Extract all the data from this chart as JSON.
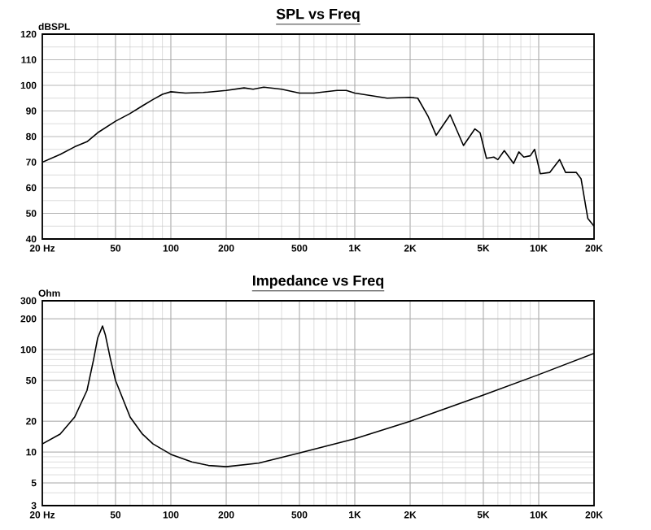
{
  "chart_data": [
    {
      "type": "line",
      "title": "SPL vs Freq",
      "ylabel": "dBSPL",
      "log": "x",
      "grid": true,
      "xlim": [
        20,
        20000
      ],
      "ylim": [
        40,
        120
      ],
      "xticks": [
        {
          "value": 20,
          "label": "20 Hz"
        },
        50,
        100,
        200,
        500,
        {
          "value": 1000,
          "label": "1K"
        },
        {
          "value": 2000,
          "label": "2K"
        },
        {
          "value": 5000,
          "label": "5K"
        },
        {
          "value": 10000,
          "label": "10K"
        },
        {
          "value": 20000,
          "label": "20K"
        }
      ],
      "yticks": [
        40,
        50,
        60,
        70,
        80,
        90,
        100,
        110,
        120
      ],
      "x": [
        20,
        25,
        30,
        35,
        40,
        50,
        60,
        70,
        80,
        90,
        100,
        120,
        150,
        200,
        250,
        280,
        320,
        400,
        500,
        600,
        800,
        900,
        1000,
        1500,
        2000,
        2200,
        2500,
        2770,
        3300,
        3900,
        4500,
        4800,
        5200,
        5700,
        6000,
        6500,
        7300,
        7800,
        8300,
        9000,
        9500,
        10200,
        11500,
        13000,
        14000,
        16000,
        17000,
        18500,
        20000
      ],
      "series": [
        {
          "color": "#000000",
          "values": [
            70,
            73,
            76,
            78,
            81.5,
            86,
            89,
            92,
            94.5,
            96.5,
            97.5,
            97,
            97.2,
            98,
            99,
            98.5,
            99.3,
            98.5,
            97,
            97,
            98,
            98,
            97,
            95,
            95.3,
            95,
            88,
            80.5,
            88.5,
            76.5,
            83,
            81.5,
            71.5,
            72,
            71,
            74.5,
            69.5,
            74,
            72,
            72.5,
            75,
            65.5,
            66,
            71,
            66,
            66,
            63.5,
            48,
            45
          ]
        }
      ]
    },
    {
      "type": "line",
      "title": "Impedance vs Freq",
      "ylabel": "Ohm",
      "log": "xy",
      "grid": true,
      "xlim": [
        20,
        20000
      ],
      "ylim": [
        3,
        300
      ],
      "xticks": [
        {
          "value": 20,
          "label": "20 Hz"
        },
        50,
        100,
        200,
        500,
        {
          "value": 1000,
          "label": "1K"
        },
        {
          "value": 2000,
          "label": "2K"
        },
        {
          "value": 5000,
          "label": "5K"
        },
        {
          "value": 10000,
          "label": "10K"
        },
        {
          "value": 20000,
          "label": "20K"
        }
      ],
      "yticks": [
        3,
        5,
        10,
        20,
        50,
        100,
        200,
        300
      ],
      "x": [
        20,
        25,
        30,
        35,
        38,
        40,
        42.5,
        44,
        47,
        50,
        60,
        70,
        80,
        100,
        130,
        160,
        200,
        300,
        500,
        1000,
        2000,
        5000,
        10000,
        20000
      ],
      "series": [
        {
          "color": "#000000",
          "values": [
            12,
            15,
            22,
            40,
            80,
            130,
            170,
            140,
            80,
            50,
            22,
            15,
            12,
            9.5,
            8,
            7.4,
            7.2,
            7.8,
            9.8,
            13.5,
            20,
            36,
            57,
            92
          ]
        }
      ]
    }
  ]
}
